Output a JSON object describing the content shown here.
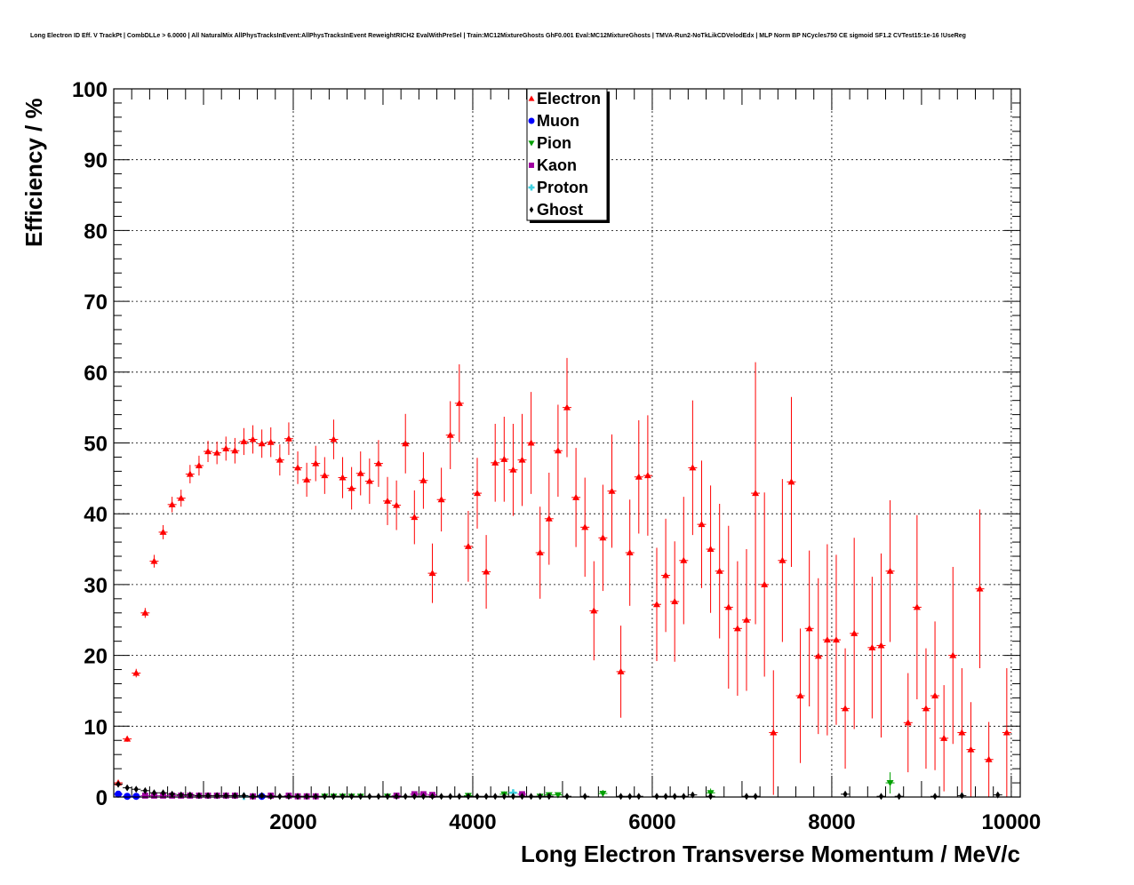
{
  "chart_data": {
    "type": "scatter",
    "title": "Long Electron ID Eff. V TrackPt | CombDLLe > 6.0000 | All NaturalMix AllPhysTracksInEvent:AllPhysTracksInEvent ReweightRICH2 EvalWithPreSel | Train:MC12MixtureGhosts GhF0.001 Eval:MC12MixtureGhosts | TMVA-Run2-NoTkLikCDVelodEdx | MLP Norm BP NCycles750 CE sigmoid SF1.2 CVTest15:1e-16 !UseReg",
    "xlabel": "Long Electron Transverse Momentum / MeV/c",
    "ylabel": "Efficiency / %",
    "xlim": [
      0,
      10100
    ],
    "ylim": [
      0,
      100
    ],
    "x_ticks": [
      {
        "value": 2000,
        "label": "2000"
      },
      {
        "value": 4000,
        "label": "4000"
      },
      {
        "value": 6000,
        "label": "6000"
      },
      {
        "value": 8000,
        "label": "8000"
      },
      {
        "value": 10000,
        "label": "10000"
      }
    ],
    "y_ticks": [
      {
        "value": 0,
        "label": "0"
      },
      {
        "value": 10,
        "label": "10"
      },
      {
        "value": 20,
        "label": "20"
      },
      {
        "value": 30,
        "label": "30"
      },
      {
        "value": 40,
        "label": "40"
      },
      {
        "value": 50,
        "label": "50"
      },
      {
        "value": 60,
        "label": "60"
      },
      {
        "value": 70,
        "label": "70"
      },
      {
        "value": 80,
        "label": "80"
      },
      {
        "value": 90,
        "label": "90"
      },
      {
        "value": 100,
        "label": "100"
      }
    ],
    "grid": true,
    "legend_position": "top-center",
    "series": [
      {
        "name": "Electron",
        "color": "#ff0000",
        "marker": "triangle-up",
        "points": [
          [
            50,
            2.0,
            0.3
          ],
          [
            150,
            8.2,
            0.4
          ],
          [
            250,
            17.5,
            0.6
          ],
          [
            350,
            26.0,
            0.7
          ],
          [
            450,
            33.3,
            0.9
          ],
          [
            550,
            37.4,
            1.0
          ],
          [
            650,
            41.3,
            1.1
          ],
          [
            750,
            42.2,
            1.2
          ],
          [
            850,
            45.6,
            1.3
          ],
          [
            950,
            46.8,
            1.4
          ],
          [
            1050,
            48.8,
            1.5
          ],
          [
            1150,
            48.6,
            1.6
          ],
          [
            1250,
            49.2,
            1.7
          ],
          [
            1350,
            48.9,
            1.8
          ],
          [
            1450,
            50.2,
            1.9
          ],
          [
            1550,
            50.5,
            2.0
          ],
          [
            1650,
            49.9,
            2.0
          ],
          [
            1750,
            50.1,
            2.1
          ],
          [
            1850,
            47.6,
            2.2
          ],
          [
            1950,
            50.6,
            2.3
          ],
          [
            2050,
            46.5,
            2.3
          ],
          [
            2150,
            44.8,
            2.4
          ],
          [
            2250,
            47.1,
            2.5
          ],
          [
            2350,
            45.4,
            2.6
          ],
          [
            2450,
            50.5,
            2.8
          ],
          [
            2550,
            45.1,
            2.9
          ],
          [
            2650,
            43.6,
            3.0
          ],
          [
            2750,
            45.7,
            3.1
          ],
          [
            2850,
            44.6,
            3.2
          ],
          [
            2950,
            47.1,
            3.3
          ],
          [
            3050,
            41.8,
            3.4
          ],
          [
            3150,
            41.2,
            3.5
          ],
          [
            3250,
            49.9,
            4.2
          ],
          [
            3350,
            39.5,
            3.8
          ],
          [
            3450,
            44.7,
            4.0
          ],
          [
            3550,
            31.6,
            4.2
          ],
          [
            3650,
            42.0,
            4.5
          ],
          [
            3750,
            51.1,
            4.8
          ],
          [
            3850,
            55.6,
            5.5
          ],
          [
            3950,
            35.4,
            5.0
          ],
          [
            4050,
            42.9,
            5.0
          ],
          [
            4150,
            31.8,
            5.2
          ],
          [
            4250,
            47.2,
            5.5
          ],
          [
            4350,
            47.7,
            6.0
          ],
          [
            4450,
            46.2,
            6.5
          ],
          [
            4550,
            47.6,
            6.5
          ],
          [
            4650,
            50.0,
            7.2
          ],
          [
            4750,
            34.5,
            6.5
          ],
          [
            4850,
            39.3,
            6.5
          ],
          [
            4950,
            48.9,
            6.5
          ],
          [
            5050,
            55.0,
            7.0
          ],
          [
            5150,
            42.3,
            7.0
          ],
          [
            5250,
            38.1,
            7.0
          ],
          [
            5350,
            26.3,
            7.0
          ],
          [
            5450,
            36.6,
            7.5
          ],
          [
            5550,
            43.2,
            8.0
          ],
          [
            5650,
            17.7,
            6.5
          ],
          [
            5750,
            34.5,
            7.5
          ],
          [
            5850,
            45.2,
            8.0
          ],
          [
            5950,
            45.4,
            8.5
          ],
          [
            6050,
            27.2,
            8.0
          ],
          [
            6150,
            31.3,
            8.0
          ],
          [
            6250,
            27.6,
            8.5
          ],
          [
            6350,
            33.4,
            9.0
          ],
          [
            6450,
            46.5,
            9.5
          ],
          [
            6550,
            38.5,
            9.0
          ],
          [
            6650,
            35.0,
            9.0
          ],
          [
            6750,
            31.9,
            9.5
          ],
          [
            6850,
            26.8,
            11.5
          ],
          [
            6950,
            23.8,
            9.5
          ],
          [
            7050,
            25.0,
            10.0
          ],
          [
            7150,
            42.9,
            18.5
          ],
          [
            7250,
            30.0,
            13.0
          ],
          [
            7350,
            9.1,
            8.8
          ],
          [
            7450,
            33.4,
            11.5
          ],
          [
            7550,
            44.5,
            12.0
          ],
          [
            7650,
            14.3,
            9.5
          ],
          [
            7750,
            23.8,
            11.0
          ],
          [
            7850,
            19.9,
            11.0
          ],
          [
            7950,
            22.2,
            13.5
          ],
          [
            8050,
            22.2,
            12.0
          ],
          [
            8150,
            12.5,
            8.5
          ],
          [
            8250,
            23.1,
            13.5
          ],
          [
            8450,
            21.1,
            10.0
          ],
          [
            8550,
            21.4,
            13.0
          ],
          [
            8650,
            31.9,
            10.0
          ],
          [
            8850,
            10.5,
            7.0
          ],
          [
            8950,
            26.8,
            13.0
          ],
          [
            9050,
            12.5,
            8.5
          ],
          [
            9150,
            14.3,
            10.5
          ],
          [
            9250,
            8.3,
            7.5
          ],
          [
            9350,
            20.0,
            12.5
          ],
          [
            9450,
            9.1,
            9.1
          ],
          [
            9550,
            6.7,
            6.7
          ],
          [
            9650,
            29.4,
            11.2
          ],
          [
            9750,
            5.3,
            5.3
          ],
          [
            9950,
            9.1,
            9.1
          ]
        ]
      },
      {
        "name": "Muon",
        "color": "#0000ff",
        "marker": "circle",
        "points": [
          [
            50,
            0.4,
            0.1
          ],
          [
            150,
            0.1,
            0.1
          ],
          [
            250,
            0.1,
            0.1
          ],
          [
            1650,
            0.1,
            0.1
          ]
        ]
      },
      {
        "name": "Pion",
        "color": "#00a000",
        "marker": "triangle-down",
        "points": [
          [
            2350,
            0.1,
            0.1
          ],
          [
            2450,
            0.1,
            0.1
          ],
          [
            2550,
            0.1,
            0.1
          ],
          [
            2650,
            0.1,
            0.1
          ],
          [
            2750,
            0.1,
            0.1
          ],
          [
            3050,
            0.1,
            0.1
          ],
          [
            3950,
            0.2,
            0.2
          ],
          [
            4350,
            0.4,
            0.4
          ],
          [
            4750,
            0.1,
            0.1
          ],
          [
            4850,
            0.3,
            0.3
          ],
          [
            4950,
            0.3,
            0.3
          ],
          [
            5450,
            0.5,
            0.5
          ],
          [
            6650,
            0.6,
            0.6
          ],
          [
            8650,
            2.0,
            1.5
          ]
        ]
      },
      {
        "name": "Kaon",
        "color": "#a000a0",
        "marker": "square",
        "points": [
          [
            350,
            0.2,
            0.1
          ],
          [
            450,
            0.2,
            0.1
          ],
          [
            550,
            0.2,
            0.1
          ],
          [
            650,
            0.2,
            0.1
          ],
          [
            750,
            0.2,
            0.1
          ],
          [
            850,
            0.2,
            0.1
          ],
          [
            950,
            0.2,
            0.1
          ],
          [
            1050,
            0.2,
            0.1
          ],
          [
            1150,
            0.2,
            0.1
          ],
          [
            1250,
            0.2,
            0.1
          ],
          [
            1350,
            0.2,
            0.1
          ],
          [
            1550,
            0.1,
            0.1
          ],
          [
            1750,
            0.2,
            0.1
          ],
          [
            1950,
            0.2,
            0.1
          ],
          [
            2050,
            0.1,
            0.1
          ],
          [
            2150,
            0.1,
            0.1
          ],
          [
            2250,
            0.1,
            0.1
          ],
          [
            3150,
            0.2,
            0.2
          ],
          [
            3350,
            0.4,
            0.3
          ],
          [
            3450,
            0.4,
            0.3
          ],
          [
            3550,
            0.3,
            0.3
          ],
          [
            4550,
            0.4,
            0.4
          ]
        ]
      },
      {
        "name": "Proton",
        "color": "#40d0e0",
        "marker": "cross",
        "points": [
          [
            1450,
            0.1,
            0.1
          ],
          [
            4450,
            0.6,
            0.5
          ]
        ]
      },
      {
        "name": "Ghost",
        "color": "#000000",
        "marker": "diamond",
        "points": [
          [
            50,
            1.8,
            0.2
          ],
          [
            150,
            1.3,
            0.2
          ],
          [
            250,
            1.1,
            0.2
          ],
          [
            350,
            0.9,
            0.2
          ],
          [
            450,
            0.6,
            0.2
          ],
          [
            550,
            0.6,
            0.2
          ],
          [
            650,
            0.4,
            0.2
          ],
          [
            750,
            0.3,
            0.2
          ],
          [
            850,
            0.3,
            0.2
          ],
          [
            950,
            0.2,
            0.1
          ],
          [
            1050,
            0.2,
            0.1
          ],
          [
            1150,
            0.2,
            0.1
          ],
          [
            1250,
            0.2,
            0.1
          ],
          [
            1350,
            0.2,
            0.1
          ],
          [
            1450,
            0.2,
            0.1
          ],
          [
            1550,
            0.1,
            0.1
          ],
          [
            1650,
            0.2,
            0.1
          ],
          [
            1750,
            0.1,
            0.1
          ],
          [
            1850,
            0.1,
            0.1
          ],
          [
            1950,
            0.1,
            0.1
          ],
          [
            2050,
            0.1,
            0.1
          ],
          [
            2150,
            0.1,
            0.1
          ],
          [
            2250,
            0.1,
            0.1
          ],
          [
            2350,
            0.1,
            0.1
          ],
          [
            2450,
            0.1,
            0.1
          ],
          [
            2550,
            0.1,
            0.1
          ],
          [
            2650,
            0.1,
            0.1
          ],
          [
            2750,
            0.1,
            0.1
          ],
          [
            2850,
            0.1,
            0.1
          ],
          [
            2950,
            0.1,
            0.1
          ],
          [
            3050,
            0.1,
            0.1
          ],
          [
            3150,
            0.1,
            0.1
          ],
          [
            3250,
            0.1,
            0.1
          ],
          [
            3350,
            0.1,
            0.1
          ],
          [
            3450,
            0.1,
            0.1
          ],
          [
            3550,
            0.1,
            0.1
          ],
          [
            3650,
            0.1,
            0.1
          ],
          [
            3750,
            0.1,
            0.1
          ],
          [
            3850,
            0.1,
            0.1
          ],
          [
            3950,
            0.1,
            0.1
          ],
          [
            4050,
            0.1,
            0.1
          ],
          [
            4150,
            0.1,
            0.1
          ],
          [
            4250,
            0.1,
            0.1
          ],
          [
            4350,
            0.1,
            0.1
          ],
          [
            4450,
            0.1,
            0.1
          ],
          [
            4550,
            0.1,
            0.1
          ],
          [
            4650,
            0.1,
            0.1
          ],
          [
            4750,
            0.1,
            0.1
          ],
          [
            4850,
            0.1,
            0.1
          ],
          [
            5050,
            0.1,
            0.1
          ],
          [
            5250,
            0.1,
            0.1
          ],
          [
            5650,
            0.1,
            0.1
          ],
          [
            5750,
            0.1,
            0.1
          ],
          [
            5850,
            0.1,
            0.1
          ],
          [
            6050,
            0.1,
            0.1
          ],
          [
            6150,
            0.1,
            0.1
          ],
          [
            6250,
            0.1,
            0.1
          ],
          [
            6350,
            0.1,
            0.1
          ],
          [
            6450,
            0.3,
            0.2
          ],
          [
            6650,
            0.1,
            0.1
          ],
          [
            7050,
            0.1,
            0.1
          ],
          [
            7150,
            0.1,
            0.1
          ],
          [
            8150,
            0.4,
            0.3
          ],
          [
            8550,
            0.1,
            0.1
          ],
          [
            8750,
            0.1,
            0.1
          ],
          [
            9150,
            0.1,
            0.1
          ],
          [
            9450,
            0.2,
            0.2
          ],
          [
            9850,
            0.3,
            0.2
          ]
        ]
      }
    ]
  }
}
